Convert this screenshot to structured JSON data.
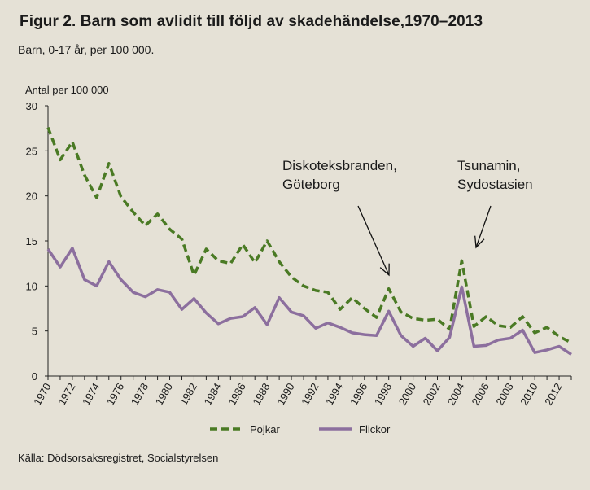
{
  "header": {
    "title": "Figur 2. Barn som avlidit till följd av skadehändelse,1970–2013",
    "subtitle": "Barn, 0-17 år, per 100 000."
  },
  "footer": {
    "source": "Källa: Dödsorsaksregistret, Socialstyrelsen"
  },
  "chart_data": {
    "type": "line",
    "ylabel": "Antal per 100 000",
    "xlabel": "",
    "ylim": [
      0,
      30
    ],
    "yticks": [
      0,
      5,
      10,
      15,
      20,
      25,
      30
    ],
    "xlim": [
      1970,
      2013
    ],
    "xtick_labels": [
      "1970",
      "1972",
      "1974",
      "1976",
      "1978",
      "1980",
      "1982",
      "1984",
      "1986",
      "1988",
      "1990",
      "1992",
      "1994",
      "1996",
      "1998",
      "2000",
      "2002",
      "2004",
      "2006",
      "2008",
      "2010",
      "2012"
    ],
    "grid": false,
    "legend_position": "bottom",
    "x": [
      1970,
      1971,
      1972,
      1973,
      1974,
      1975,
      1976,
      1977,
      1978,
      1979,
      1980,
      1981,
      1982,
      1983,
      1984,
      1985,
      1986,
      1987,
      1988,
      1989,
      1990,
      1991,
      1992,
      1993,
      1994,
      1995,
      1996,
      1997,
      1998,
      1999,
      2000,
      2001,
      2002,
      2003,
      2004,
      2005,
      2006,
      2007,
      2008,
      2009,
      2010,
      2011,
      2012,
      2013
    ],
    "series": [
      {
        "name": "Pojkar",
        "color": "#4a7a24",
        "style": "dashed",
        "values": [
          27.6,
          24.0,
          26.0,
          22.3,
          19.8,
          23.6,
          19.9,
          18.2,
          16.7,
          18.0,
          16.3,
          15.2,
          11.2,
          14.1,
          12.8,
          12.5,
          14.6,
          12.6,
          15.0,
          12.7,
          11.0,
          10.0,
          9.5,
          9.3,
          7.4,
          8.7,
          7.5,
          6.5,
          9.7,
          7.1,
          6.4,
          6.2,
          6.3,
          5.2,
          12.8,
          5.5,
          6.6,
          5.6,
          5.4,
          6.6,
          4.8,
          5.4,
          4.4,
          3.7
        ]
      },
      {
        "name": "Flickor",
        "color": "#8c6f9e",
        "style": "solid",
        "values": [
          14.1,
          12.1,
          14.2,
          10.7,
          10.0,
          12.7,
          10.7,
          9.3,
          8.8,
          9.6,
          9.3,
          7.4,
          8.6,
          7.0,
          5.8,
          6.4,
          6.6,
          7.6,
          5.7,
          8.7,
          7.1,
          6.7,
          5.3,
          5.9,
          5.4,
          4.8,
          4.6,
          4.5,
          7.2,
          4.5,
          3.3,
          4.2,
          2.8,
          4.3,
          9.9,
          3.3,
          3.4,
          4.0,
          4.2,
          5.1,
          2.6,
          2.9,
          3.3,
          2.4
        ]
      }
    ],
    "annotations": [
      {
        "lines": [
          "Diskoteksbranden,",
          "Göteborg"
        ],
        "year": 1998
      },
      {
        "lines": [
          "Tsunamin,",
          "Sydostasien"
        ],
        "year": 2004
      }
    ]
  }
}
